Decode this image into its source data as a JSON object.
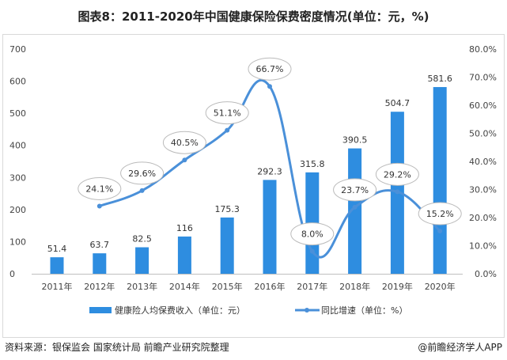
{
  "chart_data": {
    "type": "bar+line",
    "title": "图表8：2011-2020年中国健康保险保费密度情况(单位：元，%)",
    "categories": [
      "2011年",
      "2012年",
      "2013年",
      "2014年",
      "2015年",
      "2016年",
      "2017年",
      "2018年",
      "2019年",
      "2020年"
    ],
    "series": [
      {
        "name": "健康险人均保费收入（单位：元）",
        "type": "bar",
        "axis": "left",
        "color": "#2e8de0",
        "values": [
          51.4,
          63.7,
          82.5,
          116,
          175.3,
          292.3,
          315.8,
          390.5,
          504.7,
          581.6
        ],
        "labels": [
          "51.4",
          "63.7",
          "82.5",
          "116",
          "175.3",
          "292.3",
          "315.8",
          "390.5",
          "504.7",
          "581.6"
        ]
      },
      {
        "name": "同比增速（单位：%）",
        "type": "line",
        "axis": "right",
        "color": "#4a90d9",
        "values": [
          null,
          24.1,
          29.6,
          40.5,
          51.1,
          66.7,
          8.0,
          23.7,
          29.2,
          15.2
        ],
        "labels": [
          "",
          "24.1%",
          "29.6%",
          "40.5%",
          "51.1%",
          "66.7%",
          "8.0%",
          "23.7%",
          "29.2%",
          "15.2%"
        ]
      }
    ],
    "ylim_left": [
      0,
      700
    ],
    "yticks_left": [
      "0",
      "100",
      "200",
      "300",
      "400",
      "500",
      "600",
      "700"
    ],
    "ylim_right": [
      0,
      80
    ],
    "yticks_right": [
      "0.0%",
      "10.0%",
      "20.0%",
      "30.0%",
      "40.0%",
      "50.0%",
      "60.0%",
      "70.0%",
      "80.0%"
    ],
    "grid": false,
    "legend": "bottom"
  },
  "footer": {
    "source": "资料来源：银保监会 国家统计局 前瞻产业研究院整理",
    "brand": "@前瞻经济学人APP"
  }
}
